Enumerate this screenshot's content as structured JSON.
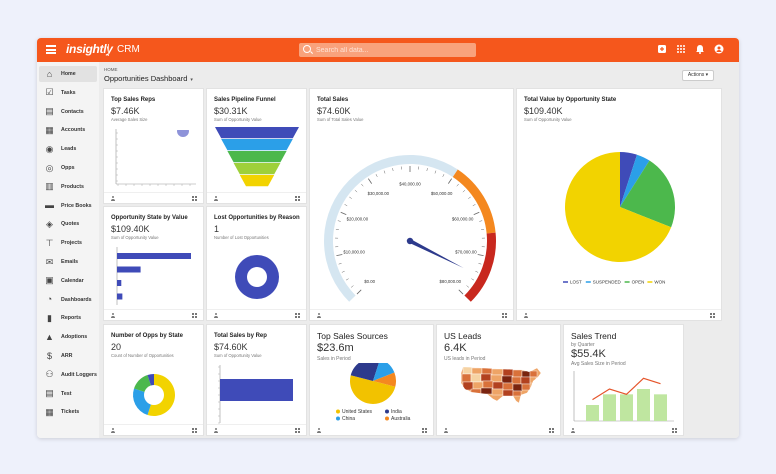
{
  "app": {
    "logo": "insightly",
    "product": "CRM",
    "search_placeholder": "Search all data..."
  },
  "sidebar": {
    "items": [
      {
        "label": "Home",
        "icon": "home-icon",
        "glyph": "⌂",
        "active": true
      },
      {
        "label": "Tasks",
        "icon": "tasks-icon",
        "glyph": "☑"
      },
      {
        "label": "Contacts",
        "icon": "contacts-icon",
        "glyph": "▤"
      },
      {
        "label": "Accounts",
        "icon": "accounts-icon",
        "glyph": "▦"
      },
      {
        "label": "Leads",
        "icon": "leads-icon",
        "glyph": "◉"
      },
      {
        "label": "Opps",
        "icon": "opps-icon",
        "glyph": "◎"
      },
      {
        "label": "Products",
        "icon": "products-icon",
        "glyph": "▥"
      },
      {
        "label": "Price Books",
        "icon": "price-books-icon",
        "glyph": "▬"
      },
      {
        "label": "Quotes",
        "icon": "quotes-icon",
        "glyph": "◈"
      },
      {
        "label": "Projects",
        "icon": "projects-icon",
        "glyph": "⊤"
      },
      {
        "label": "Emails",
        "icon": "emails-icon",
        "glyph": "✉"
      },
      {
        "label": "Calendar",
        "icon": "calendar-icon",
        "glyph": "▣"
      },
      {
        "label": "Dashboards",
        "icon": "dashboards-icon",
        "glyph": "◔"
      },
      {
        "label": "Reports",
        "icon": "reports-icon",
        "glyph": "▮"
      },
      {
        "label": "Adoptions",
        "icon": "adoptions-icon",
        "glyph": "▲"
      },
      {
        "label": "ARR",
        "icon": "arr-icon",
        "glyph": "$"
      },
      {
        "label": "Audit Loggers",
        "icon": "audit-loggers-icon",
        "glyph": "⚇"
      },
      {
        "label": "Test",
        "icon": "test-icon",
        "glyph": "▤"
      },
      {
        "label": "Tickets",
        "icon": "tickets-icon",
        "glyph": "▦"
      }
    ]
  },
  "header": {
    "breadcrumb": "HOME",
    "title": "Opportunities Dashboard",
    "actions_label": "Actions"
  },
  "cards": {
    "top_reps": {
      "title": "Top Sales Reps",
      "value": "$7.46K",
      "subtitle": "Average Sales Size"
    },
    "pipeline": {
      "title": "Sales Pipeline Funnel",
      "value": "$30.31K",
      "subtitle": "Sum of Opportunity Value"
    },
    "total_sales": {
      "title": "Total Sales",
      "value": "$74.60K",
      "subtitle": "Sum of Total Sales Value"
    },
    "total_value_state": {
      "title": "Total Value by Opportunity State",
      "value": "$109.40K",
      "subtitle": "Sum of Opportunity Value"
    },
    "opp_state_value": {
      "title": "Opportunity State by Value",
      "value": "$109.40K",
      "subtitle": "Sum of Opportunity Value"
    },
    "lost_by_reason": {
      "title": "Lost Opportunities by Reason",
      "value": "1",
      "subtitle": "Number of Lost Opportunities"
    },
    "opps_by_state": {
      "title": "Number of Opps by State",
      "value": "20",
      "subtitle": "Count of Number of Opportunities"
    },
    "total_by_rep": {
      "title": "Total Sales by Rep",
      "value": "$74.60K",
      "subtitle": "Sum of Opportunity Value"
    },
    "top_sources": {
      "title": "Top Sales Sources",
      "value": "$23.6m",
      "subtitle": "Sales in Period"
    },
    "us_leads": {
      "title": "US Leads",
      "value": "6.4K",
      "subtitle": "US leads in Period"
    },
    "sales_trend": {
      "title": "Sales Trend",
      "title2": "by Quarter",
      "value": "$55.4K",
      "subtitle": "Avg Sales Size in Period"
    }
  },
  "chart_data": [
    {
      "type": "scatter",
      "title": "Top Sales Reps",
      "series": [
        {
          "values": [
            [
              1,
              1
            ]
          ]
        }
      ],
      "color": "#8e93d9"
    },
    {
      "type": "funnel",
      "title": "Sales Pipeline Funnel",
      "stages": [
        {
          "color": "#3f4bb8"
        },
        {
          "color": "#2b9fe8"
        },
        {
          "color": "#4cb84c"
        },
        {
          "color": "#9ed03a"
        },
        {
          "color": "#f2d300"
        }
      ]
    },
    {
      "type": "gauge",
      "title": "Total Sales",
      "min": 0,
      "max": 80000,
      "value": 74600,
      "tick_labels": [
        "$0.00",
        "$10,000.00",
        "$20,000.00",
        "$30,000.00",
        "$40,000.00",
        "$50,000.00",
        "$60,000.00",
        "$70,000.00",
        "$80,000.00"
      ],
      "bands": [
        {
          "from": 0,
          "to": 50000,
          "color": "#d5e6f1"
        },
        {
          "from": 50000,
          "to": 65000,
          "color": "#f4881f"
        },
        {
          "from": 65000,
          "to": 80000,
          "color": "#c8281e"
        }
      ],
      "needle_color": "#2d3a8c"
    },
    {
      "type": "pie",
      "title": "Total Value by Opportunity State",
      "legend": "bottom",
      "slices": [
        {
          "label": "LOST",
          "value": 5,
          "color": "#3f4bb8"
        },
        {
          "label": "SUSPENDED",
          "value": 4,
          "color": "#2b9fe8"
        },
        {
          "label": "OPEN",
          "value": 22,
          "color": "#4cb84c"
        },
        {
          "label": "WON",
          "value": 69,
          "color": "#f2d300"
        }
      ]
    },
    {
      "type": "bar",
      "title": "Opportunity State by Value",
      "orientation": "horizontal",
      "values": [
        69,
        22,
        4,
        5
      ],
      "color": "#3f4bb8"
    },
    {
      "type": "pie",
      "title": "Lost Opportunities by Reason",
      "donut": true,
      "slices": [
        {
          "value": 1,
          "color": "#3f4bb8"
        }
      ]
    },
    {
      "type": "pie",
      "title": "Number of Opps by State",
      "donut": true,
      "slices": [
        {
          "value": 55,
          "color": "#f2d300"
        },
        {
          "value": 25,
          "color": "#2b9fe8"
        },
        {
          "value": 15,
          "color": "#4cb84c"
        },
        {
          "value": 5,
          "color": "#3f4bb8"
        }
      ]
    },
    {
      "type": "bar",
      "title": "Total Sales by Rep",
      "orientation": "horizontal",
      "values": [
        74.6
      ],
      "color": "#3f4bb8"
    },
    {
      "type": "pie",
      "title": "Top Sales Sources",
      "legend": "bottom",
      "slices": [
        {
          "label": "United States",
          "value": 50,
          "color": "#f2c200"
        },
        {
          "label": "India",
          "value": 26,
          "color": "#2d3a8c"
        },
        {
          "label": "China",
          "value": 14,
          "color": "#2b9fe8"
        },
        {
          "label": "Australia",
          "value": 10,
          "color": "#f4881f"
        }
      ]
    },
    {
      "type": "map",
      "title": "US Leads",
      "palette": [
        "#f6d3a3",
        "#eea466",
        "#d9713a",
        "#b2411f",
        "#7a240f"
      ]
    },
    {
      "type": "bar",
      "title": "Sales Trend",
      "values": [
        3,
        5,
        5,
        6,
        5
      ],
      "line": [
        4,
        6,
        5,
        8,
        7
      ],
      "bar_color": "#bfe6a0",
      "line_color": "#e5552b"
    }
  ]
}
